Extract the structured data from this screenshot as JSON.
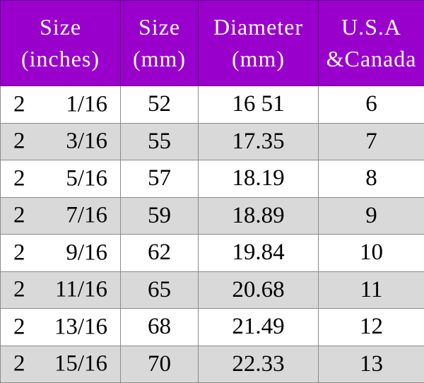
{
  "colors": {
    "header_bg": "#9900cc",
    "header_text": "#ffffff",
    "alt_row_bg": "#d9d9d9"
  },
  "headers": [
    {
      "line1": "Size",
      "line2": "(inches)"
    },
    {
      "line1": "Size",
      "line2": "(mm)"
    },
    {
      "line1": "Diameter",
      "line2": "(mm)"
    },
    {
      "line1": "U.S.A",
      "line2": "&Canada"
    }
  ],
  "rows": [
    {
      "whole": "2",
      "frac": "1/16",
      "mm": "52",
      "diameter": "16 51",
      "us": "6"
    },
    {
      "whole": "2",
      "frac": "3/16",
      "mm": "55",
      "diameter": "17.35",
      "us": "7"
    },
    {
      "whole": "2",
      "frac": "5/16",
      "mm": "57",
      "diameter": "18.19",
      "us": "8"
    },
    {
      "whole": "2",
      "frac": "7/16",
      "mm": "59",
      "diameter": "18.89",
      "us": "9"
    },
    {
      "whole": "2",
      "frac": "9/16",
      "mm": "62",
      "diameter": "19.84",
      "us": "10"
    },
    {
      "whole": "2",
      "frac": "11/16",
      "mm": "65",
      "diameter": "20.68",
      "us": "11"
    },
    {
      "whole": "2",
      "frac": "13/16",
      "mm": "68",
      "diameter": "21.49",
      "us": "12"
    },
    {
      "whole": "2",
      "frac": "15/16",
      "mm": "70",
      "diameter": "22.33",
      "us": "13"
    }
  ]
}
